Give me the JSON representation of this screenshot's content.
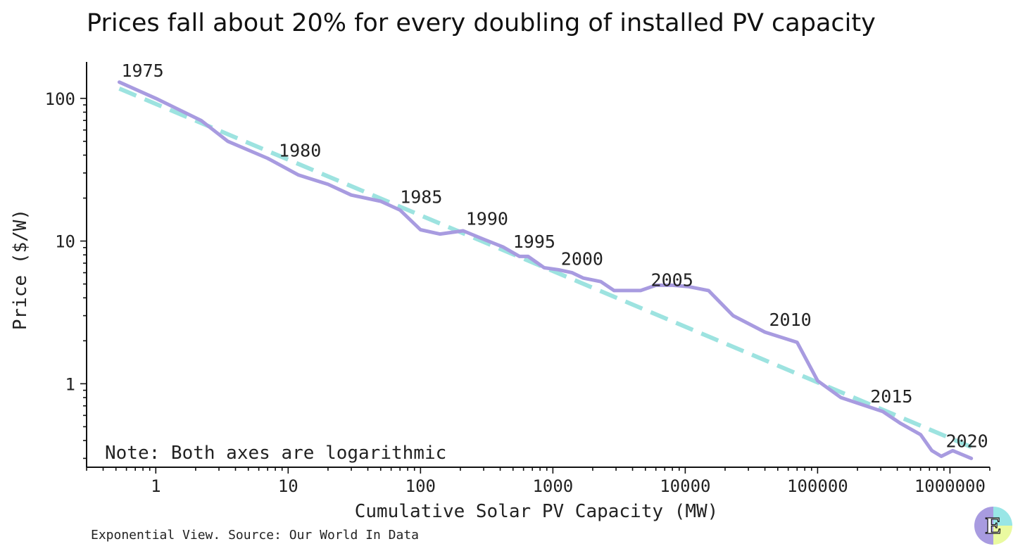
{
  "title": "Prices fall about 20% for every doubling of installed PV capacity",
  "note": "Note: Both axes are logarithmic",
  "source": "Exponential View. Source: Our World In Data",
  "logo": {
    "letter": "E",
    "colors": [
      "#a89be0",
      "#a8ead8",
      "#eafaa0",
      "#99e6e6"
    ]
  },
  "colors": {
    "series": "#a89be0",
    "trend": "#9de3e0",
    "axis": "#111111"
  },
  "chart_data": {
    "type": "line",
    "xlabel": "Cumulative Solar PV Capacity (MW)",
    "ylabel": "Price ($/W)",
    "xscale": "log",
    "yscale": "log",
    "xlim": [
      0.3,
      2000000
    ],
    "ylim": [
      0.26,
      180
    ],
    "x_ticks": [
      1,
      10,
      100,
      1000,
      10000,
      100000,
      1000000
    ],
    "x_tick_labels": [
      "1",
      "10",
      "100",
      "1000",
      "10000",
      "100000",
      "1000000"
    ],
    "y_ticks": [
      1,
      10,
      100
    ],
    "y_tick_labels": [
      "1",
      "10",
      "100"
    ],
    "grid": false,
    "series": [
      {
        "role": "price",
        "style": "solid",
        "x": [
          0.53,
          1.0,
          2.2,
          3.5,
          7.0,
          12,
          20,
          30,
          50,
          70,
          100,
          140,
          210,
          300,
          420,
          560,
          650,
          860,
          1100,
          1400,
          1700,
          2300,
          2900,
          4600,
          6000,
          8000,
          10500,
          15000,
          23000,
          40000,
          70000,
          100000,
          150000,
          310000,
          420000,
          600000,
          730000,
          860000,
          1050000,
          1450000
        ],
        "y": [
          130,
          100,
          70,
          50,
          38,
          29,
          25,
          21,
          19,
          16.5,
          12,
          11.2,
          11.8,
          10.3,
          9.1,
          7.8,
          7.8,
          6.5,
          6.3,
          6.0,
          5.5,
          5.2,
          4.5,
          4.5,
          4.9,
          4.9,
          4.8,
          4.5,
          3.0,
          2.3,
          1.95,
          1.05,
          0.8,
          0.64,
          0.53,
          0.44,
          0.34,
          0.31,
          0.34,
          0.3
        ]
      },
      {
        "role": "trend",
        "style": "dashed",
        "x": [
          0.53,
          1450000
        ],
        "y": [
          117,
          0.36
        ]
      }
    ],
    "annotations": [
      {
        "text": "1975",
        "x": 0.55,
        "y": 142
      },
      {
        "text": "1980",
        "x": 8.5,
        "y": 39
      },
      {
        "text": "1985",
        "x": 70,
        "y": 18.5
      },
      {
        "text": "1990",
        "x": 220,
        "y": 13
      },
      {
        "text": "1995",
        "x": 500,
        "y": 9.0
      },
      {
        "text": "2000",
        "x": 1150,
        "y": 6.8
      },
      {
        "text": "2005",
        "x": 5500,
        "y": 4.85
      },
      {
        "text": "2010",
        "x": 43000,
        "y": 2.55
      },
      {
        "text": "2015",
        "x": 250000,
        "y": 0.74
      },
      {
        "text": "2020",
        "x": 930000,
        "y": 0.36
      }
    ]
  }
}
